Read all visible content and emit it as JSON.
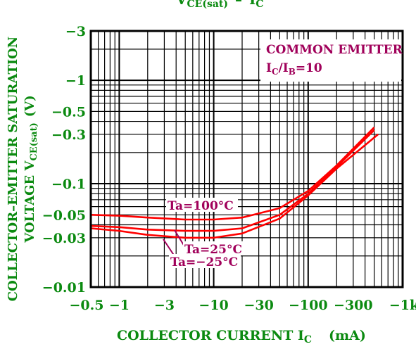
{
  "chart_data": {
    "type": "line",
    "title": "VCE(sat) – IC",
    "title_parts": {
      "v": "V",
      "v_sub": "CE(sat)",
      "dash": "–",
      "i": "I",
      "i_sub": "C"
    },
    "xlabel": "COLLECTOR CURRENT IC (mA)",
    "xlabel_parts": {
      "main": "COLLECTOR CURRENT I",
      "sub": "C",
      "unit": "(mA)"
    },
    "ylabel": "COLLECTOR-EMITTER SATURATION VOLTAGE VCE(sat) (V)",
    "ylabel_parts": {
      "line1": "COLLECTOR–EMITTER SATURATION",
      "line2_main": "VOLTAGE V",
      "line2_sub": "CE(sat)",
      "line2_unit": "(V)"
    },
    "x_scale": "log",
    "y_scale": "log",
    "xlim": [
      -0.5,
      -1000
    ],
    "ylim": [
      -0.01,
      -3
    ],
    "x_ticks": [
      {
        "value": -0.5,
        "label": "−0.5"
      },
      {
        "value": -1,
        "label": "−1"
      },
      {
        "value": -3,
        "label": "−3"
      },
      {
        "value": -10,
        "label": "−10"
      },
      {
        "value": -30,
        "label": "−30"
      },
      {
        "value": -100,
        "label": "−100"
      },
      {
        "value": -300,
        "label": "−300"
      },
      {
        "value": -1000,
        "label": "−1k"
      }
    ],
    "y_ticks": [
      {
        "value": -3,
        "label": "−3"
      },
      {
        "value": -1,
        "label": "−1"
      },
      {
        "value": -0.5,
        "label": "−0.5"
      },
      {
        "value": -0.3,
        "label": "−0.3"
      },
      {
        "value": -0.1,
        "label": "−0.1"
      },
      {
        "value": -0.05,
        "label": "−0.05"
      },
      {
        "value": -0.03,
        "label": "−0.03"
      },
      {
        "value": -0.01,
        "label": "−0.01"
      }
    ],
    "grid": true,
    "annotation": {
      "line1": "COMMON EMITTER",
      "line2_main": "I",
      "line2_sub1": "C",
      "line2_mid": "/I",
      "line2_sub2": "B",
      "line2_end": "=10"
    },
    "series": [
      {
        "name": "Ta=100°C",
        "x": [
          -0.5,
          -1,
          -2,
          -5,
          -10,
          -20,
          -50,
          -100,
          -200,
          -500
        ],
        "y": [
          -0.05,
          -0.049,
          -0.047,
          -0.045,
          -0.045,
          -0.047,
          -0.058,
          -0.085,
          -0.15,
          -0.35
        ]
      },
      {
        "name": "Ta=25°C",
        "x": [
          -0.5,
          -1,
          -2,
          -5,
          -10,
          -20,
          -50,
          -100,
          -200,
          -500
        ],
        "y": [
          -0.039,
          -0.038,
          -0.036,
          -0.035,
          -0.035,
          -0.037,
          -0.05,
          -0.08,
          -0.145,
          -0.33
        ]
      },
      {
        "name": "Ta=−25°C",
        "x": [
          -0.5,
          -1,
          -2,
          -5,
          -10,
          -20,
          -50,
          -100,
          -200,
          -550
        ],
        "y": [
          -0.037,
          -0.035,
          -0.032,
          -0.03,
          -0.03,
          -0.033,
          -0.046,
          -0.077,
          -0.14,
          -0.3
        ]
      }
    ],
    "colors": {
      "curve": "#ff0000",
      "text_green": "#0b8a10",
      "text_magenta": "#a0005a",
      "label_box": "#ffffff"
    }
  }
}
